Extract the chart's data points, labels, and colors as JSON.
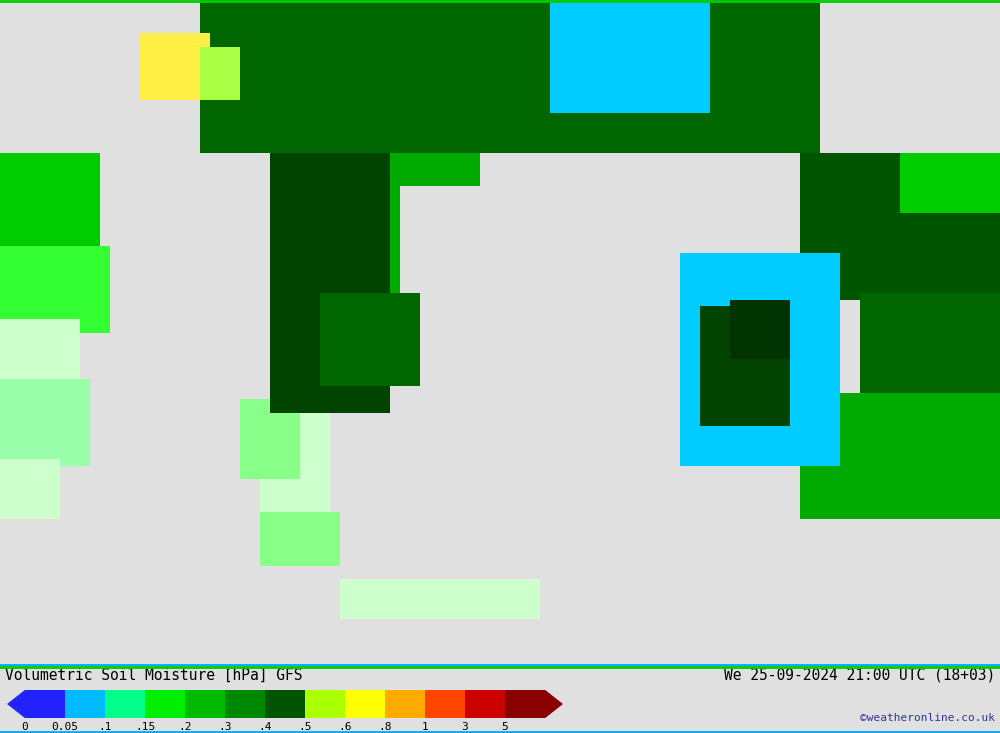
{
  "title_left": "Volumetric Soil Moisture [hPa] GFS",
  "title_right": "We 25-09-2024 21:00 UTC (18+03)",
  "copyright": "©weatheronline.co.uk",
  "colorbar_labels": [
    "0",
    "0.05",
    ".1",
    ".15",
    ".2",
    ".3",
    ".4",
    ".5",
    ".6",
    ".8",
    "1",
    "3",
    "5"
  ],
  "colorbar_colors": [
    "#2222ff",
    "#00bbff",
    "#00ff88",
    "#00ee00",
    "#00bb00",
    "#008800",
    "#005500",
    "#aaff00",
    "#ffff00",
    "#ffaa00",
    "#ff4400",
    "#cc0000",
    "#880000"
  ],
  "bg_color": "#e0e0e0",
  "panel_color": "#ffffff",
  "border_green": "#00cc00",
  "border_blue": "#00aaff",
  "figsize": [
    10.0,
    7.33
  ],
  "dpi": 100
}
